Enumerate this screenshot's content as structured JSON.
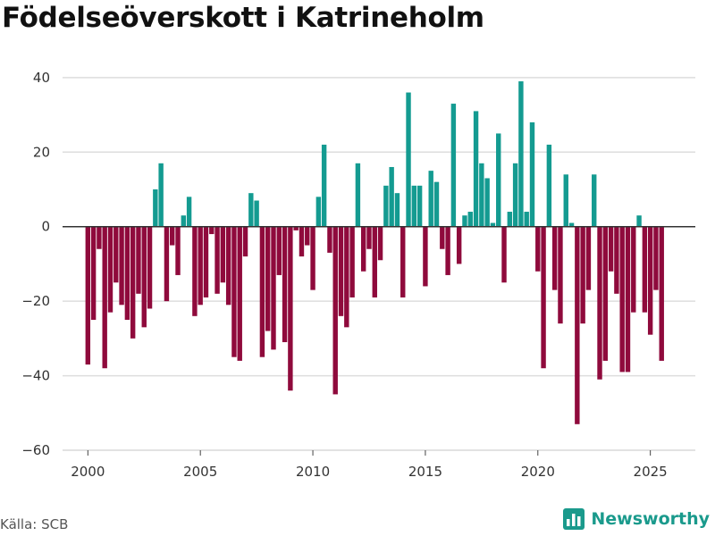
{
  "title": "Födelseöverskott i Katrineholm",
  "source": "Källa: SCB",
  "brand": {
    "name": "Newsworthy",
    "icon": "newsworthy-bar-chart-icon"
  },
  "colors": {
    "positive": "#149b91",
    "negative": "#8f0a3c",
    "grid": "#dddddd",
    "zero_line": "#333333",
    "brand": "#1a9a8c"
  },
  "chart_data": {
    "type": "bar",
    "title": "Födelseöverskott i Katrineholm",
    "frequency": "quarterly",
    "x_start": 2000,
    "xlim": [
      1998.875,
      2027.0
    ],
    "ylim": [
      -60,
      45
    ],
    "yticks": [
      40,
      20,
      0,
      -20,
      -40,
      -60
    ],
    "xticks": [
      2000,
      2005,
      2010,
      2015,
      2020,
      2025
    ],
    "grid": true,
    "values": [
      -37,
      -25,
      -6,
      -38,
      -23,
      -15,
      -21,
      -25,
      -30,
      -18,
      -27,
      -22,
      10,
      17,
      -20,
      -5,
      -13,
      3,
      8,
      -24,
      -21,
      -19,
      -2,
      -18,
      -15,
      -21,
      -35,
      -36,
      -8,
      9,
      7,
      -35,
      -28,
      -33,
      -13,
      -31,
      -44,
      -1,
      -8,
      -5,
      -17,
      8,
      22,
      -7,
      -45,
      -24,
      -27,
      -19,
      17,
      -12,
      -6,
      -19,
      -9,
      11,
      16,
      9,
      -19,
      36,
      11,
      11,
      -16,
      15,
      12,
      -6,
      -13,
      33,
      -10,
      3,
      4,
      31,
      17,
      13,
      1,
      25,
      -15,
      4,
      17,
      39,
      4,
      28,
      -12,
      -38,
      22,
      -17,
      -26,
      14,
      1,
      -53,
      -26,
      -17,
      14,
      -41,
      -36,
      -12,
      -18,
      -39,
      -39,
      -23,
      3,
      -23,
      -29,
      -17,
      -36
    ]
  }
}
